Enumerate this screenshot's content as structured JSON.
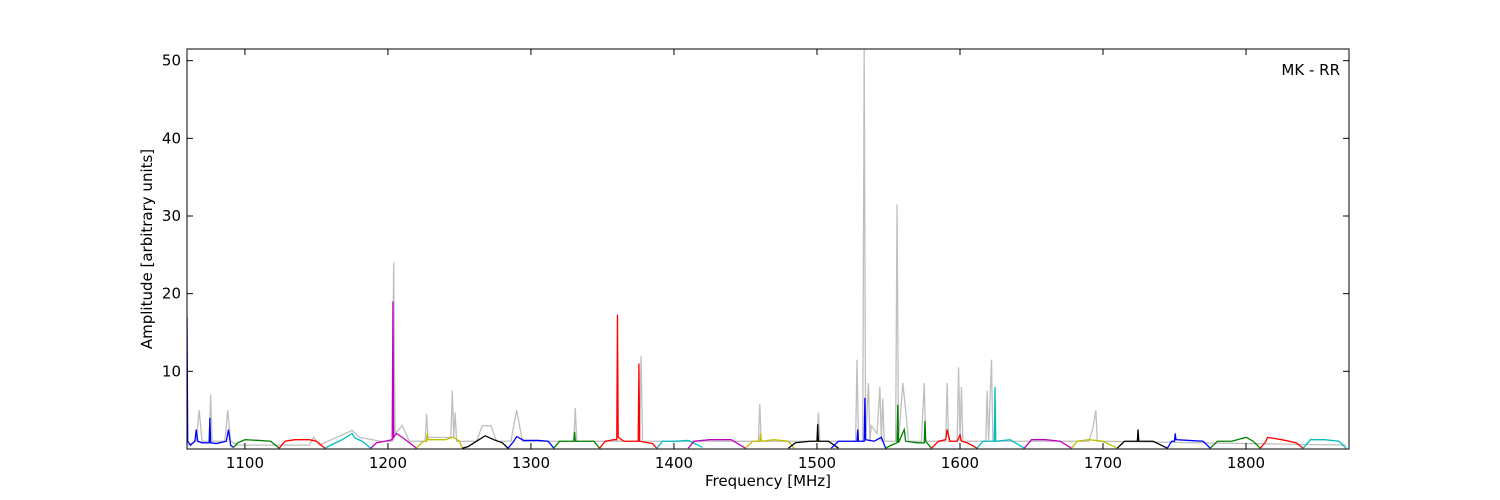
{
  "chart_data": {
    "type": "line",
    "xlabel": "Frequency [MHz]",
    "ylabel": "Amplitude [arbitrary units]",
    "annotation": "MK - RR",
    "xlim": [
      1059.5,
      1872
    ],
    "ylim": [
      0,
      51.5
    ],
    "xticks": [
      1100,
      1200,
      1300,
      1400,
      1500,
      1600,
      1700,
      1800
    ],
    "yticks": [
      10,
      20,
      30,
      40,
      50
    ],
    "series": [
      {
        "color": "#bfbfbf",
        "x": [
          1060,
          1066,
          1068,
          1070,
          1075,
          1076,
          1077,
          1086,
          1088,
          1090,
          1095,
          1145,
          1148,
          1152,
          1175,
          1180,
          1195,
          1203,
          1204,
          1205,
          1210,
          1215,
          1226,
          1227,
          1228,
          1244,
          1245,
          1246,
          1247,
          1248,
          1262,
          1266,
          1272,
          1276,
          1286,
          1290,
          1294,
          1330,
          1331,
          1332,
          1376,
          1377,
          1378,
          1459,
          1460,
          1461,
          1500,
          1501,
          1502,
          1527,
          1528,
          1529,
          1532,
          1533,
          1534,
          1536,
          1537,
          1538,
          1542,
          1544,
          1545,
          1546,
          1547,
          1555,
          1556,
          1557,
          1560,
          1562,
          1564,
          1573,
          1575,
          1576,
          1590,
          1591,
          1592,
          1598,
          1599,
          1600,
          1601,
          1602,
          1618,
          1619,
          1620,
          1622,
          1623,
          1690,
          1693,
          1695,
          1696,
          1700,
          1870
        ],
        "values": [
          0.5,
          1,
          5,
          1,
          1,
          7,
          1,
          1,
          5,
          1,
          0.5,
          0.5,
          1.5,
          0.5,
          2.4,
          1.5,
          1,
          1,
          24,
          2,
          3,
          1,
          1,
          4.5,
          1.5,
          1.5,
          7.5,
          1.5,
          4.7,
          1,
          1,
          3,
          3,
          1,
          1,
          5,
          1,
          1,
          5.3,
          1,
          1,
          12,
          1,
          1,
          5.8,
          1,
          1,
          4.7,
          1,
          1,
          11.5,
          1,
          1,
          51.5,
          1,
          8.5,
          1,
          3,
          2,
          8,
          1,
          6.5,
          1,
          1,
          31.5,
          1,
          8.5,
          5,
          1,
          1,
          8.5,
          1,
          1,
          8.5,
          1,
          1,
          10.5,
          1,
          8,
          1,
          1,
          7.5,
          1,
          11.5,
          1,
          1,
          2.7,
          5,
          1,
          1,
          0.5
        ]
      },
      {
        "color": "#0000ff",
        "x": [
          1059.5,
          1060,
          1062,
          1065,
          1066,
          1067,
          1070,
          1075,
          1075.5,
          1076,
          1080,
          1087,
          1088.5,
          1090,
          1092
        ],
        "values": [
          17,
          1,
          0.5,
          1,
          2.5,
          1,
          0.8,
          0.8,
          4,
          0.8,
          0.7,
          1,
          2.5,
          0.5,
          0.2
        ]
      },
      {
        "color": "#008000",
        "x": [
          1092,
          1095,
          1100,
          1110,
          1118,
          1124
        ],
        "values": [
          0.2,
          0.8,
          1.2,
          1.1,
          1.0,
          0.1
        ]
      },
      {
        "color": "#ff0000",
        "x": [
          1124,
          1128,
          1135,
          1145,
          1150,
          1156
        ],
        "values": [
          0.1,
          1,
          1.2,
          1.2,
          1,
          0.1
        ]
      },
      {
        "color": "#00bfbf",
        "x": [
          1156,
          1160,
          1168,
          1175,
          1177,
          1182,
          1188
        ],
        "values": [
          0.1,
          0.5,
          1.2,
          2,
          1.4,
          1,
          0.1
        ]
      },
      {
        "color": "#bf00bf",
        "x": [
          1188,
          1192,
          1198,
          1203,
          1203.5,
          1204,
          1206,
          1210,
          1215,
          1220
        ],
        "values": [
          0.1,
          0.8,
          1,
          1.2,
          19,
          1.5,
          2,
          1.5,
          0.8,
          0.1
        ]
      },
      {
        "color": "#bfbf00",
        "x": [
          1220,
          1224,
          1227,
          1227.5,
          1228,
          1240,
          1245,
          1246,
          1250,
          1252
        ],
        "values": [
          0.1,
          0.9,
          1,
          2,
          1.2,
          1.2,
          1.5,
          1.5,
          1,
          0.1
        ]
      },
      {
        "color": "#000000",
        "x": [
          1252,
          1256,
          1262,
          1268,
          1274,
          1280,
          1284
        ],
        "values": [
          0.1,
          0.3,
          1,
          1.7,
          1.2,
          0.8,
          0.1
        ]
      },
      {
        "color": "#0000ff",
        "x": [
          1284,
          1288,
          1290,
          1295,
          1305,
          1312,
          1316
        ],
        "values": [
          0.1,
          1,
          1.6,
          1.1,
          1.1,
          1,
          0.1
        ]
      },
      {
        "color": "#008000",
        "x": [
          1316,
          1320,
          1330,
          1330.5,
          1331,
          1340,
          1344,
          1348
        ],
        "values": [
          0.1,
          1,
          1,
          2.2,
          1,
          1,
          1,
          0.1
        ]
      },
      {
        "color": "#ff0000",
        "x": [
          1348,
          1352,
          1358,
          1360,
          1360.5,
          1361,
          1365,
          1375,
          1375.5,
          1376,
          1385,
          1388
        ],
        "values": [
          0.1,
          1,
          1.2,
          1.2,
          17.3,
          1.5,
          1,
          1,
          11,
          1,
          0.7,
          0.1
        ]
      },
      {
        "color": "#00bfbf",
        "x": [
          1388,
          1392,
          1400,
          1410,
          1420
        ],
        "values": [
          0.1,
          1,
          1,
          1.1,
          0.2
        ]
      },
      {
        "color": "#bf00bf",
        "x": [
          1410,
          1414,
          1425,
          1440,
          1450
        ],
        "values": [
          0.1,
          1,
          1.2,
          1.2,
          0.1
        ]
      },
      {
        "color": "#bfbf00",
        "x": [
          1450,
          1455,
          1460,
          1460.5,
          1461,
          1470,
          1480,
          1484
        ],
        "values": [
          0.1,
          1,
          1,
          2,
          1,
          1.2,
          1,
          0.1
        ]
      },
      {
        "color": "#000000",
        "x": [
          1480,
          1485,
          1495,
          1500,
          1500.5,
          1501,
          1508,
          1515
        ],
        "values": [
          0.1,
          0.8,
          1,
          1,
          3.2,
          1,
          1,
          0.1
        ]
      },
      {
        "color": "#0000ff",
        "x": [
          1510,
          1515,
          1525,
          1528,
          1528.5,
          1529,
          1533,
          1533.5,
          1534,
          1540,
          1545,
          1548
        ],
        "values": [
          0.1,
          1,
          1,
          1,
          2.5,
          1,
          1,
          6.6,
          1.2,
          1,
          1.5,
          0.1
        ]
      },
      {
        "color": "#008000",
        "x": [
          1548,
          1552,
          1556,
          1556.5,
          1557,
          1561,
          1562,
          1570,
          1575,
          1575.5,
          1576,
          1580
        ],
        "values": [
          0.1,
          0.5,
          0.8,
          5.7,
          0.8,
          2.5,
          1,
          0.8,
          0.8,
          3.6,
          1,
          0.1
        ]
      },
      {
        "color": "#ff0000",
        "x": [
          1580,
          1585,
          1590,
          1591,
          1593,
          1598,
          1600,
          1601,
          1605,
          1612
        ],
        "values": [
          0.1,
          1,
          1.2,
          2.5,
          1,
          1,
          1.8,
          1,
          0.8,
          0.1
        ]
      },
      {
        "color": "#00bfbf",
        "x": [
          1612,
          1616,
          1622,
          1624,
          1624.5,
          1625,
          1635,
          1645
        ],
        "values": [
          0.1,
          1,
          1,
          1,
          8,
          1,
          1.2,
          0.1
        ]
      },
      {
        "color": "#bf00bf",
        "x": [
          1645,
          1650,
          1660,
          1670,
          1678
        ],
        "values": [
          0.1,
          1.2,
          1.2,
          1,
          0.1
        ]
      },
      {
        "color": "#bfbf00",
        "x": [
          1678,
          1682,
          1690,
          1700,
          1710
        ],
        "values": [
          0.1,
          1,
          1.2,
          1,
          0.1
        ]
      },
      {
        "color": "#000000",
        "x": [
          1710,
          1715,
          1724,
          1724.5,
          1725,
          1735,
          1745
        ],
        "values": [
          0.1,
          1,
          1,
          2.5,
          1,
          1,
          0.1
        ]
      },
      {
        "color": "#0000ff",
        "x": [
          1745,
          1748,
          1750,
          1750.5,
          1751,
          1760,
          1770,
          1775
        ],
        "values": [
          0.1,
          1,
          1,
          2,
          1.2,
          1.1,
          1,
          0.1
        ]
      },
      {
        "color": "#008000",
        "x": [
          1775,
          1780,
          1790,
          1800,
          1805,
          1810
        ],
        "values": [
          0.1,
          1,
          1,
          1.5,
          1,
          0.1
        ]
      },
      {
        "color": "#ff0000",
        "x": [
          1810,
          1814,
          1815,
          1825,
          1835,
          1840
        ],
        "values": [
          0.1,
          1,
          1.5,
          1.2,
          0.8,
          0.1
        ]
      },
      {
        "color": "#00bfbf",
        "x": [
          1840,
          1845,
          1855,
          1865,
          1870
        ],
        "values": [
          0.1,
          1.2,
          1.2,
          1,
          0.1
        ]
      }
    ]
  }
}
